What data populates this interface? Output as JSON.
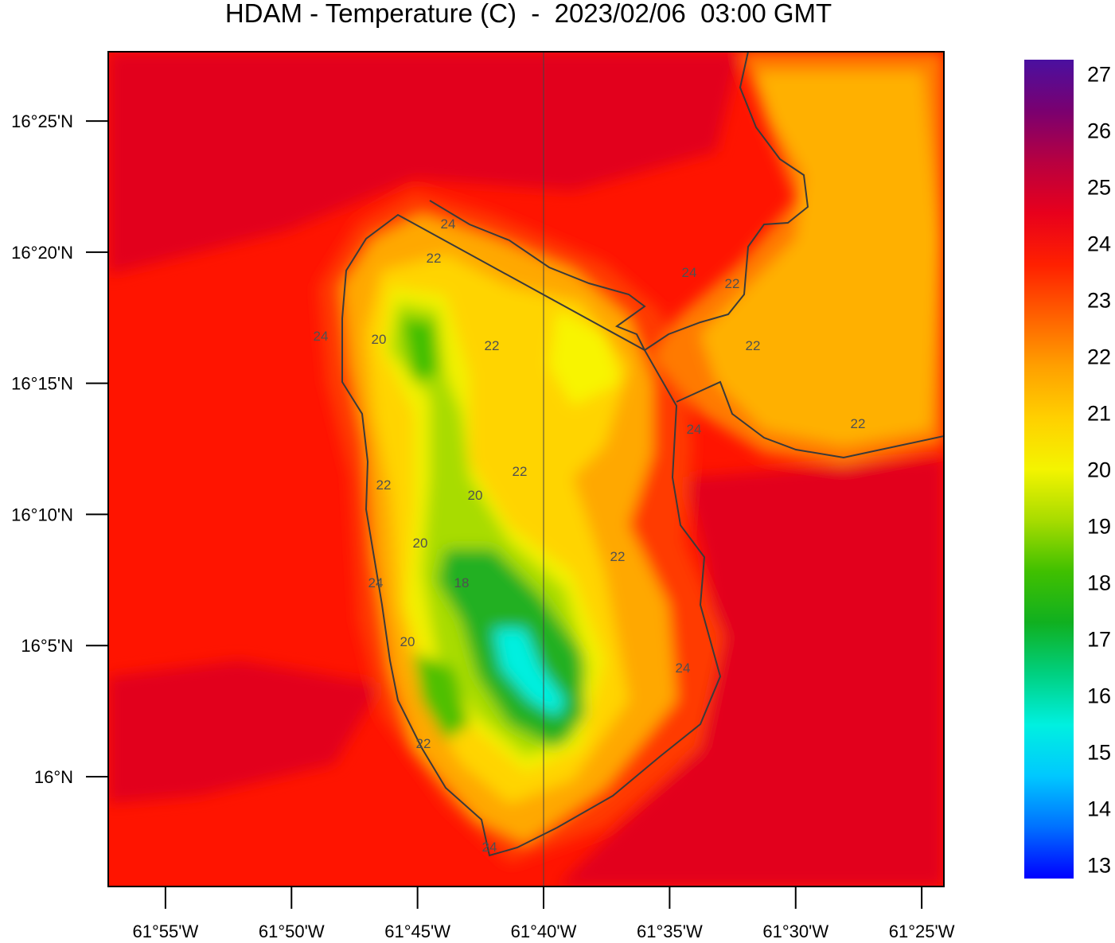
{
  "chart_data": {
    "type": "filled-contour-map",
    "title": "HDAM - Temperature (C)  -  2023/02/06  03:00 GMT",
    "xlim": [
      -61.9545,
      -61.402
    ],
    "ylim": [
      15.9302,
      16.4607
    ],
    "xticks": [
      {
        "value": -61.916667,
        "label": "61°55'W"
      },
      {
        "value": -61.833333,
        "label": "61°50'W"
      },
      {
        "value": -61.75,
        "label": "61°45'W"
      },
      {
        "value": -61.666667,
        "label": "61°40'W"
      },
      {
        "value": -61.583333,
        "label": "61°35'W"
      },
      {
        "value": -61.5,
        "label": "61°30'W"
      },
      {
        "value": -61.416667,
        "label": "61°25'W"
      }
    ],
    "yticks": [
      {
        "value": 16.416667,
        "label": "16°25'N"
      },
      {
        "value": 16.333333,
        "label": "16°20'N"
      },
      {
        "value": 16.25,
        "label": "16°15'N"
      },
      {
        "value": 16.166667,
        "label": "16°10'N"
      },
      {
        "value": 16.083333,
        "label": "16°5'N"
      },
      {
        "value": 16.0,
        "label": "16°N"
      }
    ],
    "colorbar": {
      "lim": [
        12.75,
        27.25
      ],
      "ticks": [
        13,
        14,
        15,
        16,
        17,
        18,
        19,
        20,
        21,
        22,
        23,
        24,
        25,
        26,
        27
      ],
      "colormap": [
        "#0000ff",
        "#0070ff",
        "#00c8ff",
        "#00f0e0",
        "#00d080",
        "#10b020",
        "#40c000",
        "#a8dc00",
        "#f4f400",
        "#ffd000",
        "#ffa000",
        "#ff6000",
        "#ff2000",
        "#e8001c",
        "#b80040",
        "#7a0070",
        "#4a10a0"
      ]
    },
    "contour_labels": [
      24,
      22,
      24,
      20,
      22,
      24,
      22,
      22,
      24,
      22,
      22,
      20,
      22,
      20,
      22,
      18,
      24,
      20,
      24,
      22,
      24
    ]
  }
}
